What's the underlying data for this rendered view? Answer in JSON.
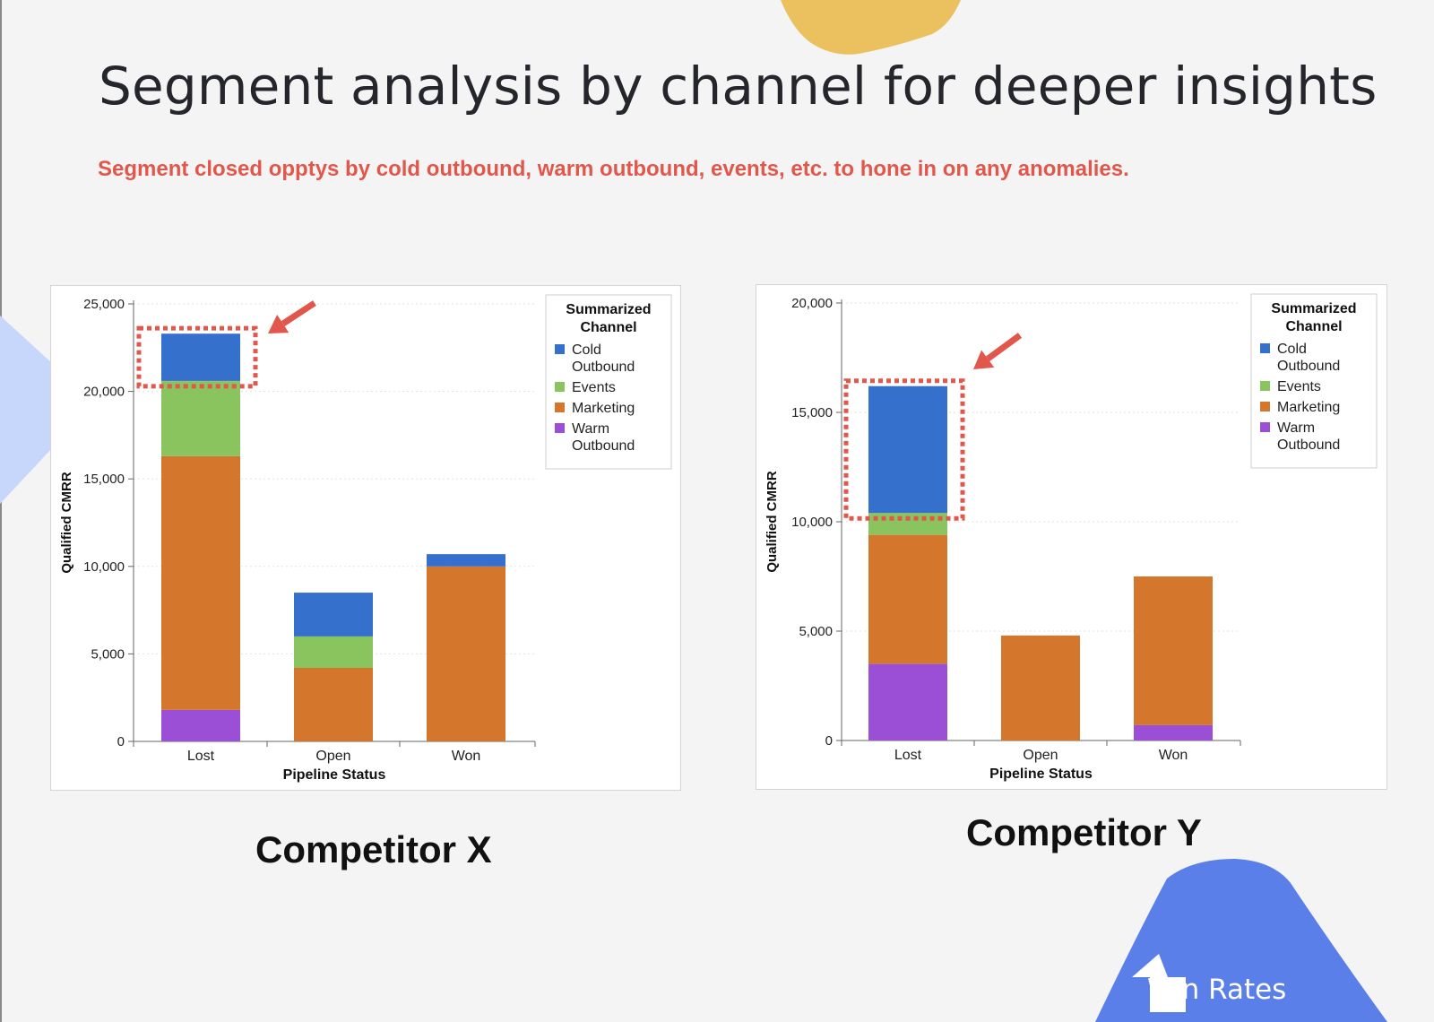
{
  "slide": {
    "title": "Segment analysis by channel for deeper insights",
    "subtitle": "Segment closed opptys by cold outbound, warm outbound, events, etc. to hone in on any anomalies.",
    "badge_label": "Win Rates",
    "badge_icon": "arrow-up-icon"
  },
  "colors": {
    "accent_red": "#e2574c",
    "cold_outbound": "#3570cc",
    "events": "#8ac45e",
    "marketing": "#d4762c",
    "warm_outbound": "#9b4fd6",
    "blob_yellow": "#ebc15f",
    "blob_blue": "#5b7fe8",
    "blob_lightblue": "#c7d6fb"
  },
  "chart_data": [
    {
      "type": "bar",
      "stacked": true,
      "caption": "Competitor X",
      "xlabel": "Pipeline Status",
      "ylabel": "Qualified CMRR",
      "ylim": [
        0,
        25000
      ],
      "yticks": [
        0,
        5000,
        10000,
        15000,
        20000,
        25000
      ],
      "ytick_labels": [
        "0",
        "5,000",
        "10,000",
        "15,000",
        "20,000",
        "25,000"
      ],
      "categories": [
        "Lost",
        "Open",
        "Won"
      ],
      "legend_title": "Summarized Channel",
      "legend_position": "top-right",
      "grid": true,
      "highlight": "Lost",
      "series": [
        {
          "name": "Warm Outbound",
          "label_lines": [
            "Warm",
            "Outbound"
          ],
          "color": "#9b4fd6",
          "values": [
            1800,
            0,
            0
          ]
        },
        {
          "name": "Marketing",
          "label_lines": [
            "Marketing"
          ],
          "color": "#d4762c",
          "values": [
            14500,
            4200,
            10000
          ]
        },
        {
          "name": "Events",
          "label_lines": [
            "Events"
          ],
          "color": "#8ac45e",
          "values": [
            4300,
            1800,
            0
          ]
        },
        {
          "name": "Cold Outbound",
          "label_lines": [
            "Cold",
            "Outbound"
          ],
          "color": "#3570cc",
          "values": [
            2700,
            2500,
            700
          ]
        }
      ]
    },
    {
      "type": "bar",
      "stacked": true,
      "caption": "Competitor Y",
      "xlabel": "Pipeline Status",
      "ylabel": "Qualified CMRR",
      "ylim": [
        0,
        20000
      ],
      "yticks": [
        0,
        5000,
        10000,
        15000,
        20000
      ],
      "ytick_labels": [
        "0",
        "5,000",
        "10,000",
        "15,000",
        "20,000"
      ],
      "categories": [
        "Lost",
        "Open",
        "Won"
      ],
      "legend_title": "Summarized Channel",
      "legend_position": "top-right",
      "grid": true,
      "highlight": "Lost",
      "series": [
        {
          "name": "Warm Outbound",
          "label_lines": [
            "Warm",
            "Outbound"
          ],
          "color": "#9b4fd6",
          "values": [
            3500,
            0,
            700
          ]
        },
        {
          "name": "Marketing",
          "label_lines": [
            "Marketing"
          ],
          "color": "#d4762c",
          "values": [
            5900,
            4800,
            6800
          ]
        },
        {
          "name": "Events",
          "label_lines": [
            "Events"
          ],
          "color": "#8ac45e",
          "values": [
            1000,
            0,
            0
          ]
        },
        {
          "name": "Cold Outbound",
          "label_lines": [
            "Cold",
            "Outbound"
          ],
          "color": "#3570cc",
          "values": [
            5800,
            0,
            0
          ]
        }
      ]
    }
  ]
}
